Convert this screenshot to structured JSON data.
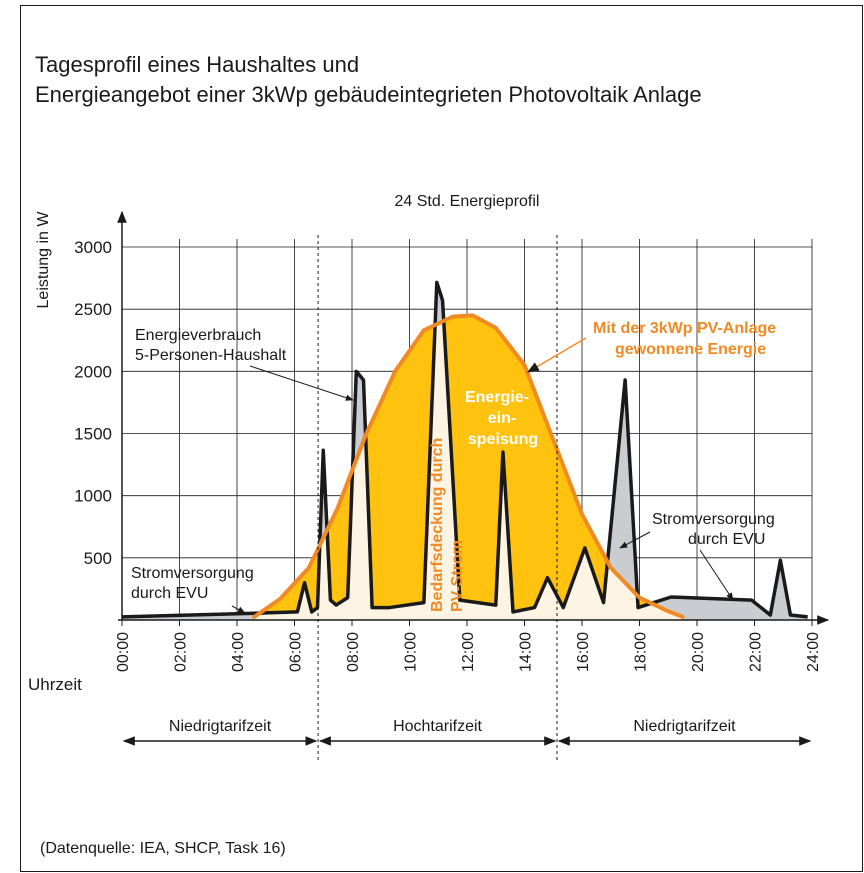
{
  "chart_data": {
    "type": "area-line",
    "title": [
      "Tagesprofil eines Haushaltes und",
      "Energieangebot einer 3kWp gebäudeintegrieten Photovoltaik Anlage"
    ],
    "subtitle": "24 Std. Energieprofil",
    "y_label": "Leistung in W",
    "x_label": "Uhrzeit",
    "xlim": [
      0,
      24
    ],
    "ylim": [
      0,
      3000
    ],
    "xticks": [
      {
        "value": 0,
        "label": "00:00"
      },
      {
        "value": 2,
        "label": "02:00"
      },
      {
        "value": 4,
        "label": "04:00"
      },
      {
        "value": 6,
        "label": "06:00"
      },
      {
        "value": 8,
        "label": "08:00"
      },
      {
        "value": 10,
        "label": "10:00"
      },
      {
        "value": 12,
        "label": "12:00"
      },
      {
        "value": 14,
        "label": "14:00"
      },
      {
        "value": 16,
        "label": "16:00"
      },
      {
        "value": 18,
        "label": "18:00"
      },
      {
        "value": 20,
        "label": "20:00"
      },
      {
        "value": 22,
        "label": "22:00"
      },
      {
        "value": 24,
        "label": "24:00"
      }
    ],
    "yticks": [
      500,
      1000,
      1500,
      2000,
      2500,
      3000
    ],
    "grid": true,
    "series": [
      {
        "name": "Energieverbrauch 5-Personen-Haushalt",
        "color": "#1a1a1a",
        "x": [
          0,
          4.0,
          6.1,
          6.35,
          6.6,
          6.8,
          7.0,
          7.25,
          7.45,
          7.85,
          8.15,
          8.4,
          8.7,
          9.3,
          10.5,
          10.95,
          11.15,
          11.75,
          13.0,
          13.25,
          13.6,
          14.35,
          14.8,
          15.35,
          16.1,
          16.75,
          17.5,
          17.95,
          19.1,
          21.9,
          22.55,
          22.9,
          23.25,
          23.85
        ],
        "values": [
          25,
          50,
          65,
          300,
          65,
          100,
          1365,
          160,
          120,
          180,
          2000,
          1930,
          100,
          100,
          140,
          2715,
          2570,
          160,
          120,
          1350,
          65,
          100,
          340,
          100,
          580,
          140,
          1930,
          100,
          185,
          160,
          40,
          480,
          40,
          25
        ]
      },
      {
        "name": "Mit der 3kWp PV-Anlage gewonnene Energie",
        "color": "#f08a24",
        "x": [
          4.6,
          5.5,
          6.5,
          7.5,
          8.5,
          9.5,
          10.5,
          11.5,
          12.2,
          13,
          14,
          15,
          16,
          17,
          18,
          19,
          19.5
        ],
        "values": [
          25,
          170,
          420,
          900,
          1500,
          2000,
          2330,
          2440,
          2450,
          2350,
          2050,
          1450,
          850,
          420,
          180,
          70,
          25
        ]
      }
    ],
    "colors": {
      "pv_fill": "#ffc20e",
      "grid_supply": "#c9ccd0",
      "self_use": "#fdf4e4"
    },
    "annotations": {
      "consumption": [
        "Energieverbrauch",
        "5-Personen-Haushalt"
      ],
      "pv": [
        "Mit der 3kWp PV-Anlage",
        "gewonnene Energie"
      ],
      "feed_in": [
        "Energie-",
        "ein-",
        "speisung"
      ],
      "self_use": [
        "Bedarfsdeckung durch",
        "PV-Strom"
      ],
      "grid_left": [
        "Stromversorgung",
        "durch EVU"
      ],
      "grid_right": [
        "Stromversorgung",
        "durch EVU"
      ]
    },
    "tariff_periods": [
      {
        "label": "Niedrigtarifzeit",
        "start": 0,
        "end": 6.82
      },
      {
        "label": "Hochtarifzeit",
        "start": 6.82,
        "end": 15.13
      },
      {
        "label": "Niedrigtarifzeit",
        "start": 15.13,
        "end": 24
      }
    ],
    "source": "(Datenquelle: IEA, SHCP, Task 16)"
  }
}
